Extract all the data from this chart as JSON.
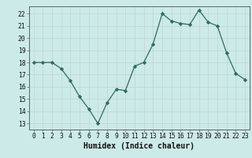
{
  "x": [
    0,
    1,
    2,
    3,
    4,
    5,
    6,
    7,
    8,
    9,
    10,
    11,
    12,
    13,
    14,
    15,
    16,
    17,
    18,
    19,
    20,
    21,
    22,
    23
  ],
  "y": [
    18,
    18,
    18,
    17.5,
    16.5,
    15.2,
    14.2,
    13,
    14.7,
    15.8,
    15.7,
    17.7,
    18,
    19.5,
    22,
    21.4,
    21.2,
    21.1,
    22.3,
    21.3,
    21,
    18.8,
    17.1,
    16.6
  ],
  "line_color": "#2e6b5e",
  "marker_color": "#2e6b5e",
  "bg_color": "#cceae8",
  "grid_color": "#c0d4d0",
  "xlabel": "Humidex (Indice chaleur)",
  "ylim": [
    12.5,
    22.6
  ],
  "xlim": [
    -0.5,
    23.5
  ],
  "yticks": [
    13,
    14,
    15,
    16,
    17,
    18,
    19,
    20,
    21,
    22
  ],
  "xticks": [
    0,
    1,
    2,
    3,
    4,
    5,
    6,
    7,
    8,
    9,
    10,
    11,
    12,
    13,
    14,
    15,
    16,
    17,
    18,
    19,
    20,
    21,
    22,
    23
  ],
  "tick_fontsize": 5.8,
  "label_fontsize": 7.0
}
